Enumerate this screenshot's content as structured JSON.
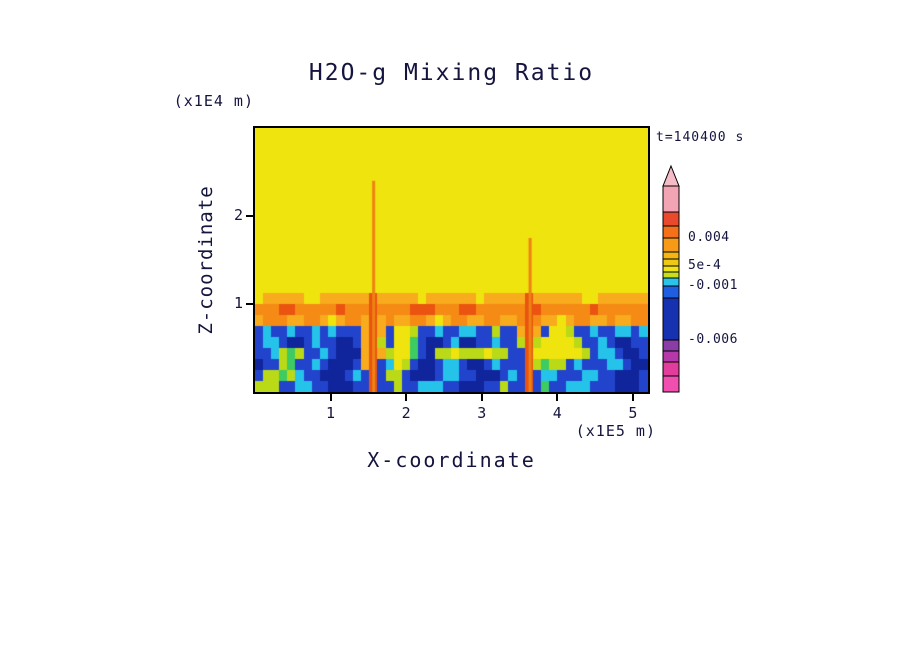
{
  "title": "H2O-g Mixing Ratio",
  "time_label": "t=140400 s",
  "axes": {
    "x_label": "X-coordinate",
    "x_unit": "(x1E5 m)",
    "y_label": "Z-coordinate",
    "y_unit": "(x1E4 m)",
    "x_ticks": [
      "1",
      "2",
      "3",
      "4",
      "5"
    ],
    "y_ticks": [
      "1",
      "2"
    ]
  },
  "chart_data": {
    "type": "heatmap",
    "title": "H2O-g Mixing Ratio",
    "xlabel": "X-coordinate (x1E5 m)",
    "ylabel": "Z-coordinate (x1E4 m)",
    "time": "t=140400 s",
    "x_range": [
      0,
      5.2
    ],
    "z_range": [
      0,
      3.0
    ],
    "x_tick_values": [
      1,
      2,
      3,
      4,
      5
    ],
    "z_tick_values": [
      1,
      2
    ],
    "grid_cols": 48,
    "palette": {
      "Y": "#f0e40e",
      "o": "#f7ab1d",
      "O": "#f58a14",
      "r": "#ea5310",
      "g": "#bada18",
      "G": "#3ecb62",
      "C": "#25c3e9",
      "B": "#2244cd",
      "D": "#10249b"
    },
    "grid_rows": [
      {
        "repeat": 15,
        "cells": [
          "YYYYYYYYYYYY",
          "YYYYYYYYYYYY",
          "YYYYYYYYYYYY",
          "YYYYYYYYYYYY"
        ]
      },
      {
        "repeat": 1,
        "cells": [
          "YoooooYYoooo",
          "ooroooooYooo",
          "oooYoooooroo",
          "ooooYYoooooo"
        ]
      },
      {
        "repeat": 1,
        "cells": [
          "OOOrrOOOOOrO",
          "OOrOOOOrrrOO",
          "OrrOOOOOOrrO",
          "OOOOOrOOOOOO"
        ]
      },
      {
        "repeat": 1,
        "cells": [
          "oOOOooOOoYoO",
          "OoroOooOOoYo",
          "OOooOOooOrOo",
          "oYoOOooOooOO"
        ]
      },
      {
        "repeat": 1,
        "cells": [
          "BCBBCBBCBCBB",
          "BoroBYYgBBCB",
          "BCCBBgBBoroB",
          "YYgBBCBBCCBC"
        ]
      },
      {
        "repeat": 1,
        "cells": [
          "BCCBDDBCBBDD",
          "BorgBYYGBDDB",
          "CDDBBCBBgrgY",
          "YYYgBBCBDDBB"
        ]
      },
      {
        "repeat": 1,
        "cells": [
          "BBCgGgBBCBDD",
          "DorogYYGBDgg",
          "YgggYggBBrYY",
          "YYYYgBCCBDDB"
        ]
      },
      {
        "repeat": 1,
        "cells": [
          "DBBgGBBCBDDD",
          "BorBCYgBDDBC",
          "CBDDBCBBBrgG",
          "ggBCBBBCCBDD"
        ]
      },
      {
        "repeat": 1,
        "cells": [
          "BggGgCBBDDDB",
          "CBrBggBDDDBC",
          "CBBDDDBCBrBC",
          "CBBBCCBBDDDB"
        ]
      },
      {
        "repeat": 1,
        "cells": [
          "gggBBCCBBDDD",
          "BBrBBgBBCCCB",
          "BDDDBBgBBrBG",
          "BBCCCBBBDDDB"
        ]
      }
    ],
    "streaks": [
      {
        "x": 1.57,
        "z_top": 2.4,
        "z_bottom": 0,
        "color": "#ee8312"
      },
      {
        "x": 3.64,
        "z_top": 1.75,
        "z_bottom": 0,
        "color": "#ee8312"
      }
    ],
    "colorbar": {
      "arrow_color": "#f5bcc8",
      "segments": [
        {
          "color": "#f2a4b4",
          "h": 26
        },
        {
          "color": "#e94a2e",
          "h": 14
        },
        {
          "color": "#f4711a",
          "h": 12,
          "label": "0.004"
        },
        {
          "color": "#f79a16",
          "h": 14
        },
        {
          "color": "#f4b611",
          "h": 7
        },
        {
          "color": "#edc913",
          "h": 7,
          "label": "5e-4"
        },
        {
          "color": "#f0e316",
          "h": 6
        },
        {
          "color": "#c8e01c",
          "h": 6
        },
        {
          "color": "#2ac4e8",
          "h": 8,
          "label": "-0.001"
        },
        {
          "color": "#1f5ee0",
          "h": 12
        },
        {
          "color": "#1632b0",
          "h": 42,
          "label": "-0.006"
        },
        {
          "color": "#8a3da6",
          "h": 11
        },
        {
          "color": "#b438a8",
          "h": 11
        },
        {
          "color": "#e23c9c",
          "h": 14
        },
        {
          "color": "#f04fb0",
          "h": 16
        }
      ]
    }
  }
}
